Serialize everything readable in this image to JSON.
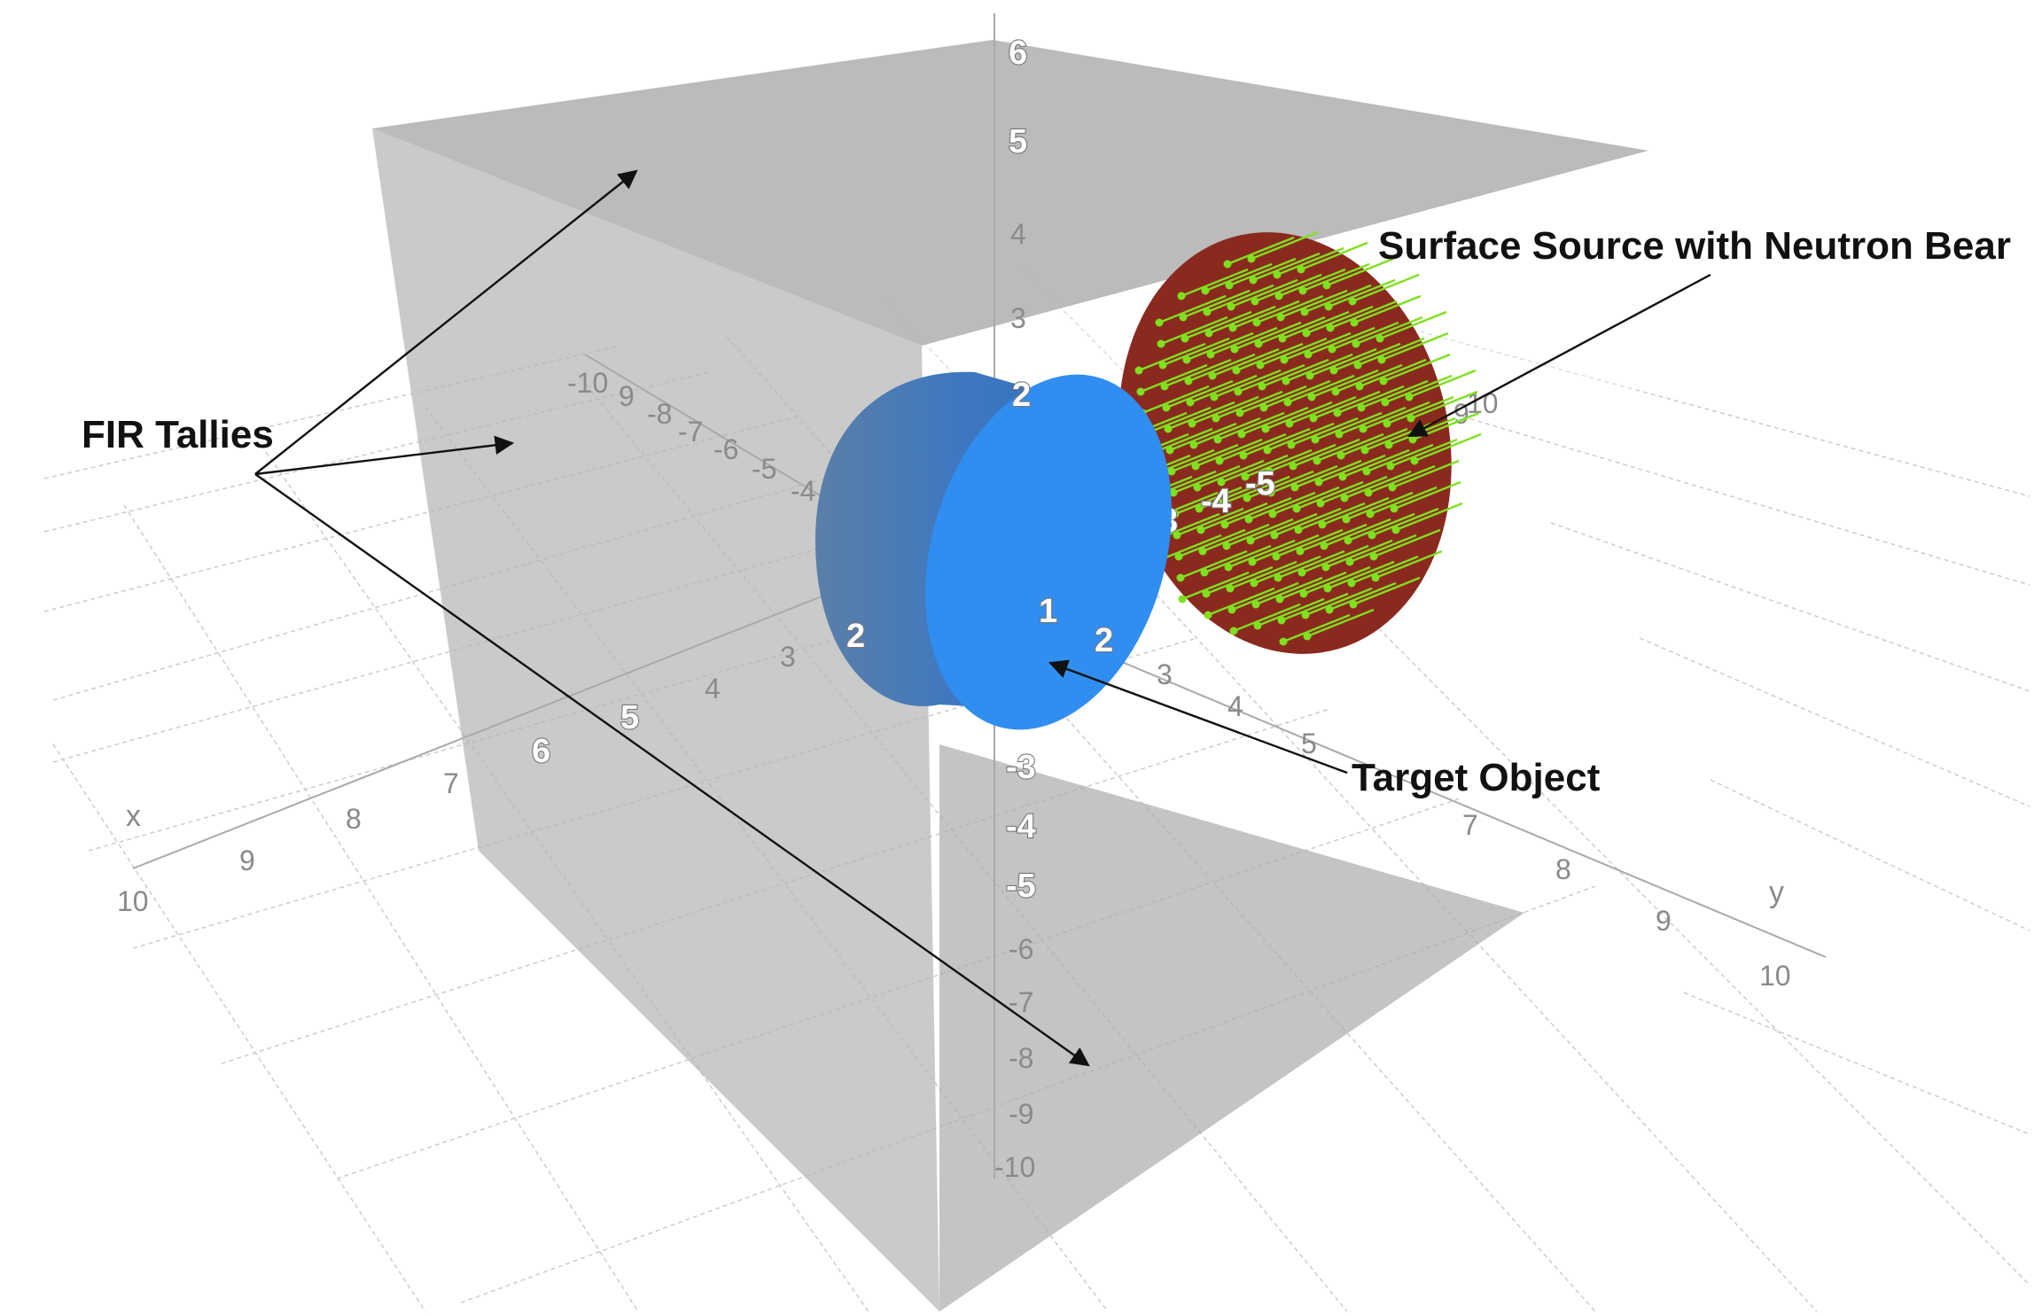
{
  "annotations": {
    "fir_tallies": "FIR Tallies",
    "surface_source": "Surface Source with Neutron Bear",
    "target_object": "Target Object"
  },
  "axes": {
    "x_name": "x",
    "y_name": "y",
    "x_ticks": [
      "10",
      "9",
      "8",
      "7",
      "6",
      "5",
      "4",
      "3",
      "2"
    ],
    "x_neg_ticks": [
      "-10",
      "9",
      "-8",
      "-7",
      "-6",
      "-5",
      "-4"
    ],
    "y_ticks": [
      "2",
      "3",
      "4",
      "5",
      "7",
      "8",
      "9",
      "10"
    ],
    "y_neg_ticks": [
      "3",
      "-4",
      "-5",
      "9",
      "10"
    ],
    "z_ticks": [
      "6",
      "5",
      "4",
      "3",
      "2",
      "1",
      "-3",
      "-4",
      "-5",
      "-6",
      "-7",
      "-8",
      "-9",
      "-10"
    ]
  },
  "colors": {
    "tally_plane": "#b4b4b4",
    "target_side": "#3b78c4",
    "target_face": "#2f8ef0",
    "source_disk": "#8a2a1e",
    "beam_arrow": "#7fe01f"
  }
}
